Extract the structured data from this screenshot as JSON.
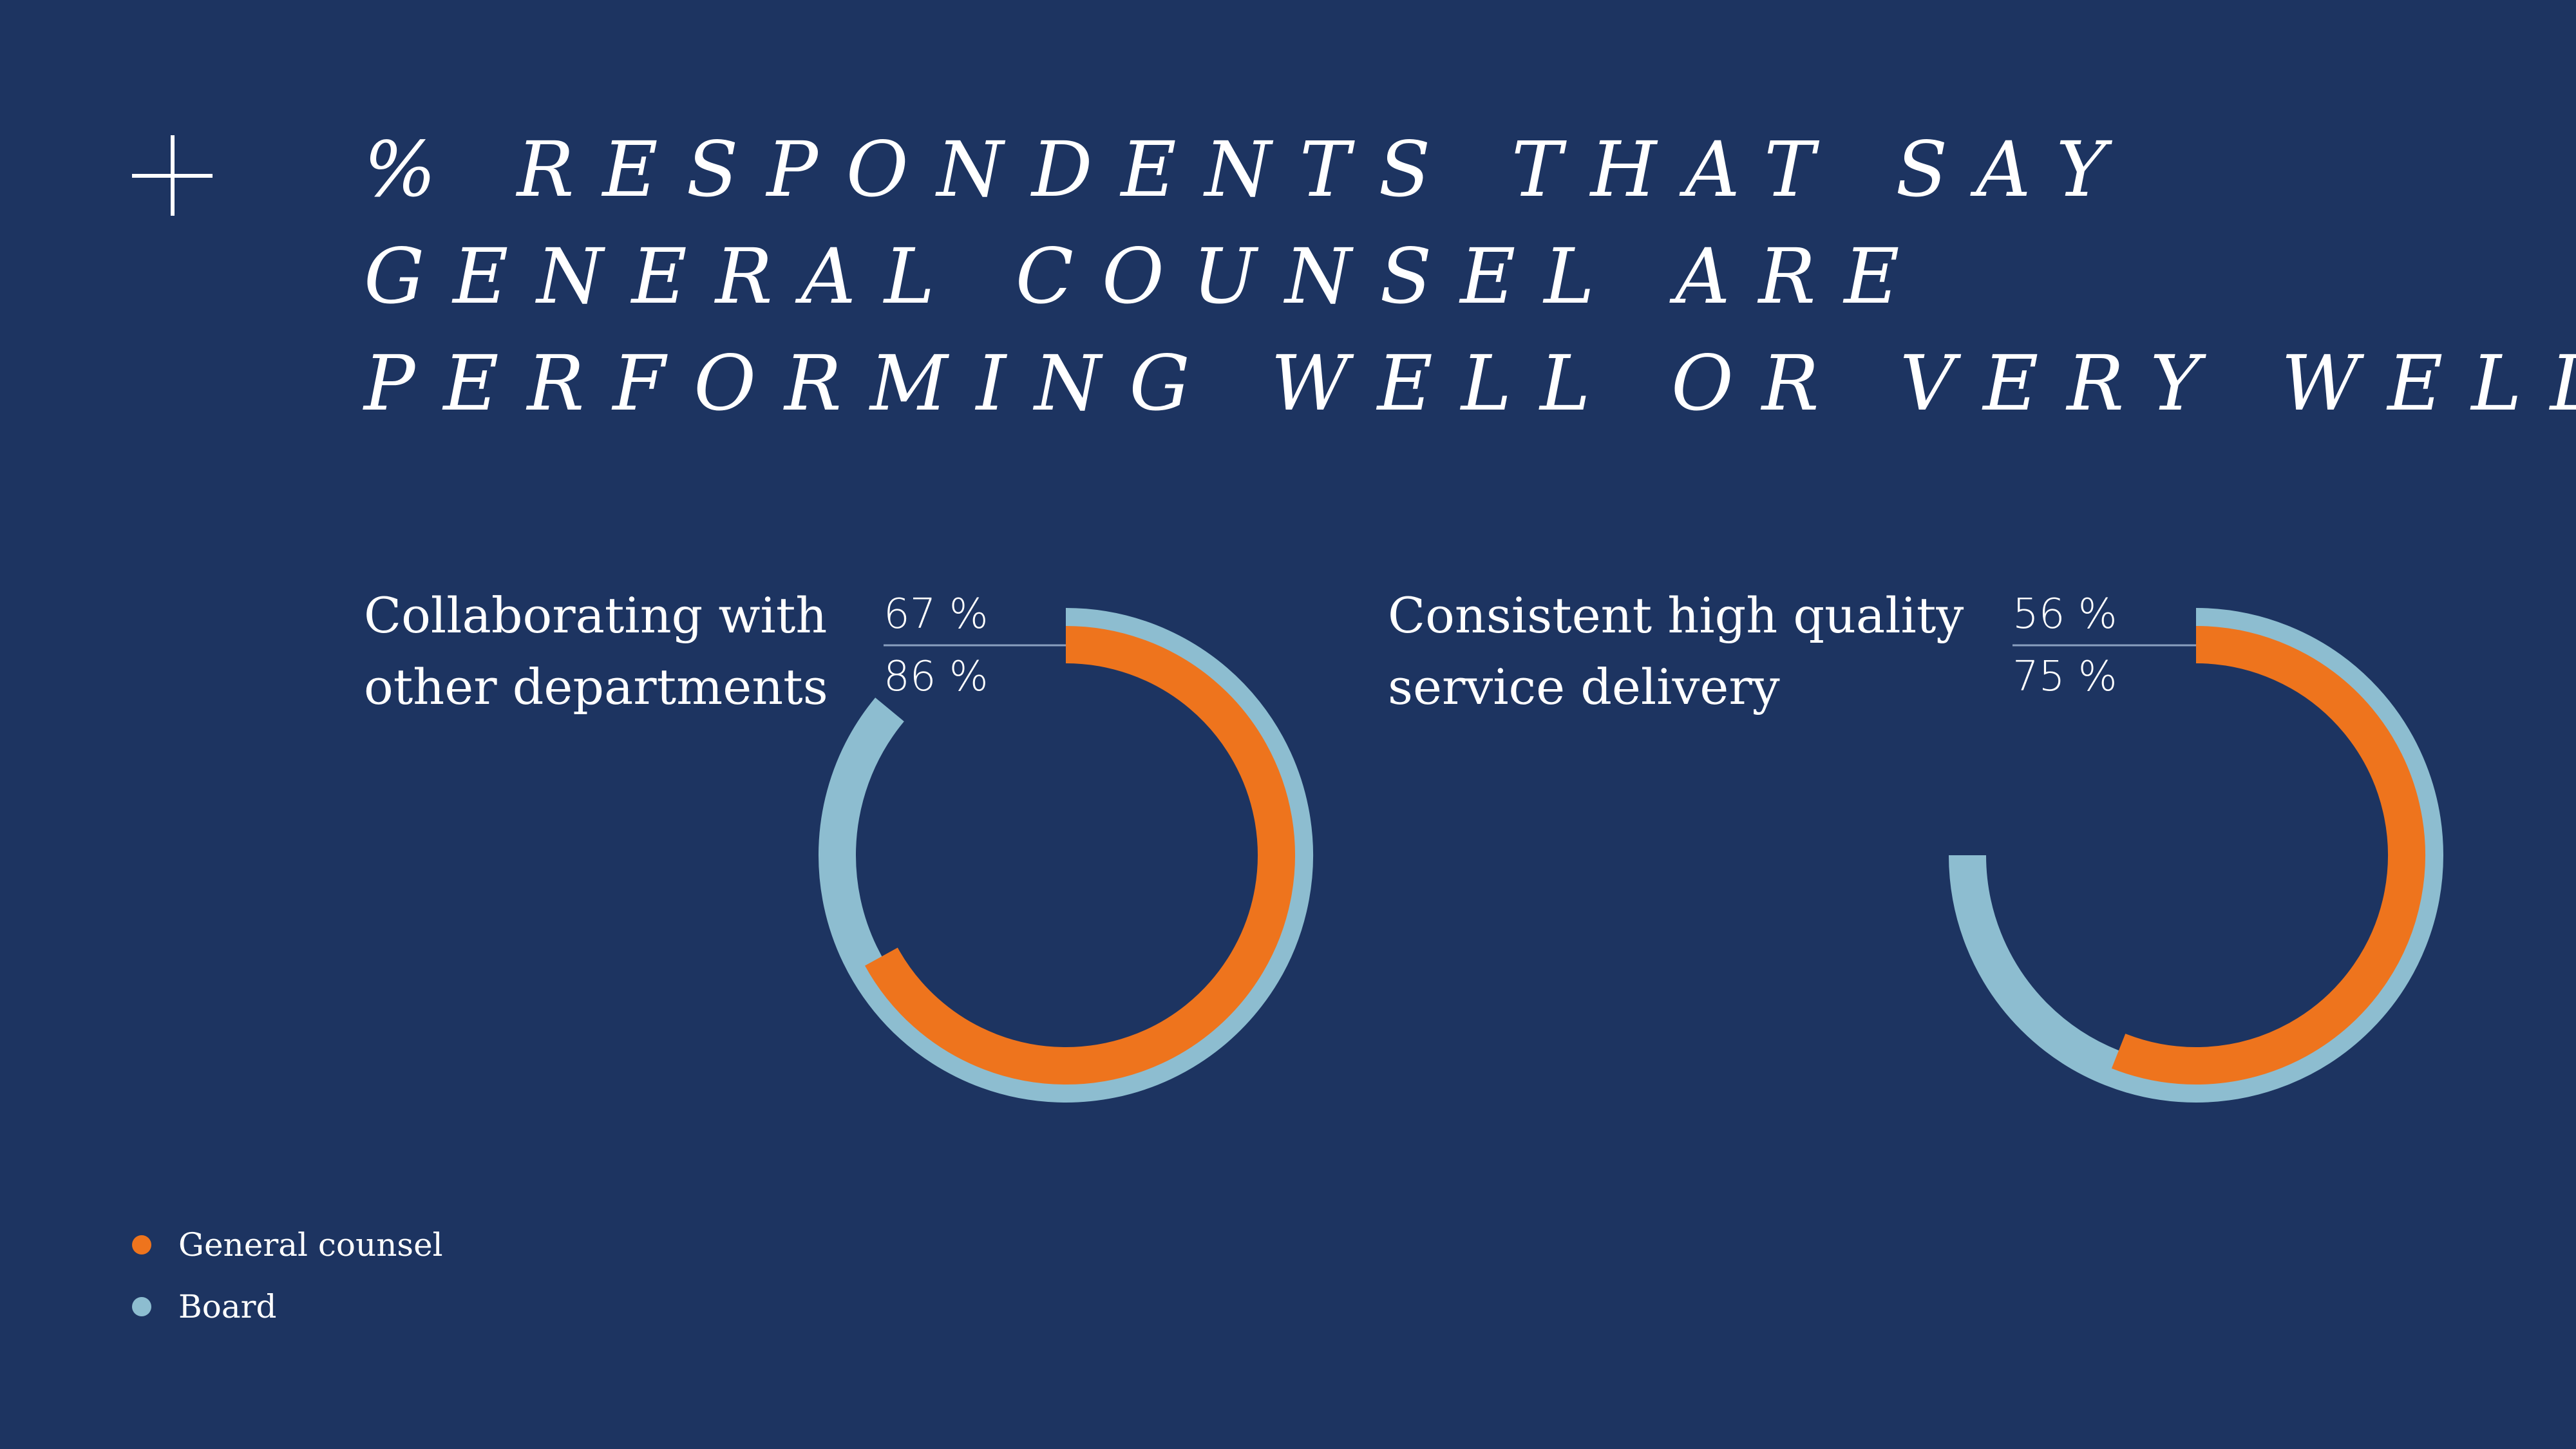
{
  "title_lines": [
    "% RESPONDENTS THAT SAY",
    "GENERAL COUNSEL ARE",
    "PERFORMING WELL OR VERY WELL"
  ],
  "colors": {
    "background": "#1d3461",
    "general_counsel": "#ee741d",
    "board": "#8dbdd0",
    "divider": "#8aa0c0",
    "text": "#ffffff"
  },
  "legend": [
    {
      "label": "General counsel",
      "color": "#ee741d",
      "icon": "orange-dot-icon"
    },
    {
      "label": "Board",
      "color": "#8dbdd0",
      "icon": "light-blue-dot-icon"
    }
  ],
  "chart_data": [
    {
      "type": "radial-bar",
      "title": "Collaborating with other departments",
      "title_lines": [
        "Collaborating with",
        "other departments"
      ],
      "series": [
        {
          "name": "General counsel",
          "value": 67,
          "label": "67 %"
        },
        {
          "name": "Board",
          "value": 86,
          "label": "86 %"
        }
      ],
      "unit": "%",
      "range": [
        0,
        100
      ]
    },
    {
      "type": "radial-bar",
      "title": "Consistent high quality service delivery",
      "title_lines": [
        "Consistent high quality",
        "service delivery"
      ],
      "series": [
        {
          "name": "General counsel",
          "value": 56,
          "label": "56 %"
        },
        {
          "name": "Board",
          "value": 75,
          "label": "75 %"
        }
      ],
      "unit": "%",
      "range": [
        0,
        100
      ]
    }
  ]
}
